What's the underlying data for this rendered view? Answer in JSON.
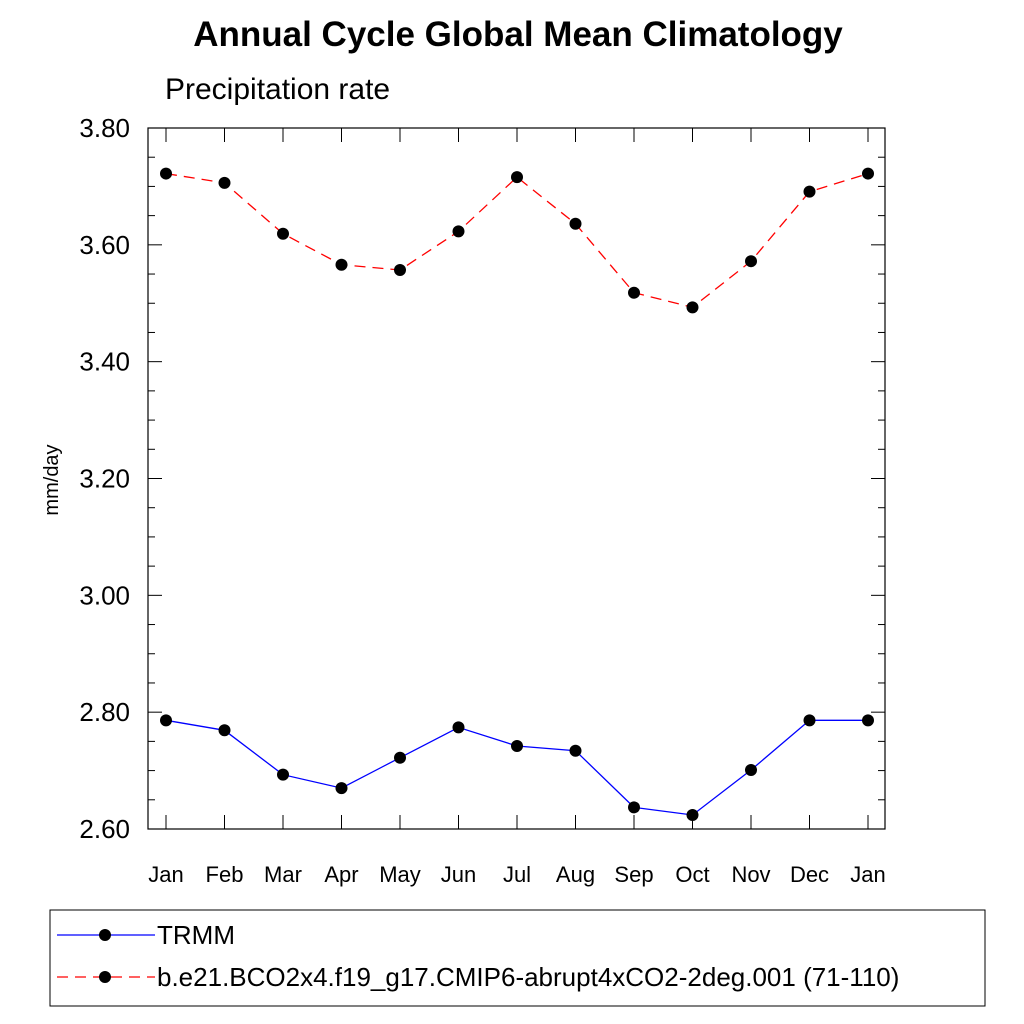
{
  "chart_data": {
    "type": "line",
    "title": "Annual Cycle Global Mean Climatology",
    "subtitle": "Precipitation rate",
    "xlabel": "",
    "ylabel": "mm/day",
    "categories": [
      "Jan",
      "Feb",
      "Mar",
      "Apr",
      "May",
      "Jun",
      "Jul",
      "Aug",
      "Sep",
      "Oct",
      "Nov",
      "Dec",
      "Jan"
    ],
    "ylim": [
      2.6,
      3.8
    ],
    "yticks": [
      "2.60",
      "2.80",
      "3.00",
      "3.20",
      "3.40",
      "3.60",
      "3.80"
    ],
    "grid": false,
    "legend_placement": "bottom",
    "series": [
      {
        "name": "TRMM",
        "color": "#0000ff",
        "line_style": "solid",
        "marker": "filled-circle",
        "values": [
          2.786,
          2.769,
          2.693,
          2.67,
          2.722,
          2.774,
          2.742,
          2.734,
          2.637,
          2.624,
          2.701,
          2.786,
          2.786
        ]
      },
      {
        "name": "b.e21.BCO2x4.f19_g17.CMIP6-abrupt4xCO2-2deg.001 (71-110)",
        "color": "#ff0000",
        "line_style": "dashed",
        "marker": "filled-circle",
        "values": [
          3.722,
          3.706,
          3.619,
          3.566,
          3.557,
          3.623,
          3.716,
          3.636,
          3.518,
          3.493,
          3.572,
          3.691,
          3.722
        ]
      }
    ]
  }
}
